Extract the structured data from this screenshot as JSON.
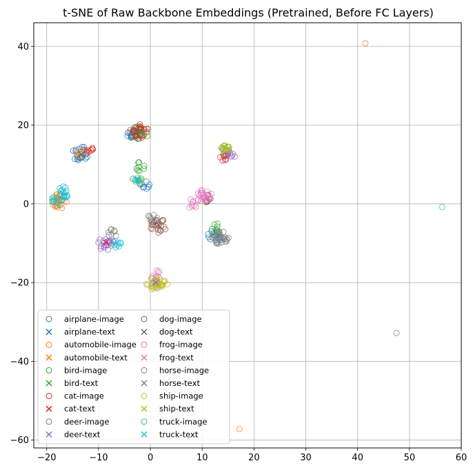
{
  "chart_data": {
    "type": "scatter",
    "title": "t-SNE of Raw Backbone Embeddings (Pretrained, Before FC Layers)",
    "xlabel": "",
    "ylabel": "",
    "xlim": [
      -22.5,
      60
    ],
    "ylim": [
      -62,
      46
    ],
    "xticks": [
      -20,
      -10,
      0,
      10,
      20,
      30,
      40,
      50,
      60
    ],
    "yticks": [
      -60,
      -40,
      -20,
      0,
      20,
      40
    ],
    "grid": true,
    "legend_position": "lower-left",
    "legend_columns": 2,
    "series": [
      {
        "name": "airplane-image",
        "marker": "circle",
        "color": "#1f77b4",
        "centers": [
          [
            -13.5,
            12.8
          ],
          [
            -3.5,
            17.5
          ],
          [
            13.5,
            -9.0
          ],
          [
            -1.0,
            4.8
          ],
          [
            12,
            -8
          ]
        ]
      },
      {
        "name": "airplane-text",
        "marker": "x",
        "color": "#1f77b4",
        "points": [
          [
            -13.3,
            12.6
          ]
        ]
      },
      {
        "name": "automobile-image",
        "marker": "circle",
        "color": "#ff7f0e",
        "centers": [
          [
            -17.5,
            0.8
          ],
          [
            -13.5,
            13.0
          ]
        ],
        "outliers": [
          [
            41.5,
            40.8
          ],
          [
            17.2,
            -57.2
          ]
        ]
      },
      {
        "name": "automobile-text",
        "marker": "x",
        "color": "#ff7f0e",
        "points": [
          [
            -17.5,
            0.8
          ]
        ]
      },
      {
        "name": "bird-image",
        "marker": "circle",
        "color": "#2ca02c",
        "centers": [
          [
            -2.0,
            18.0
          ],
          [
            14.5,
            13.5
          ],
          [
            -2.0,
            9.5
          ],
          [
            12.8,
            -6.2
          ]
        ]
      },
      {
        "name": "bird-text",
        "marker": "x",
        "color": "#2ca02c",
        "points": [
          [
            -1.8,
            18.2
          ]
        ]
      },
      {
        "name": "cat-image",
        "marker": "circle",
        "color": "#d62728",
        "centers": [
          [
            -2.0,
            18.5
          ],
          [
            14.2,
            12.0
          ],
          [
            -12.0,
            14.0
          ]
        ]
      },
      {
        "name": "cat-text",
        "marker": "x",
        "color": "#d62728",
        "points": [
          [
            -8.5,
            -9.8
          ]
        ]
      },
      {
        "name": "deer-image",
        "marker": "circle",
        "color": "#9467bd",
        "centers": [
          [
            -8.5,
            -10.0
          ],
          [
            1.0,
            -20.5
          ],
          [
            15.5,
            12.5
          ]
        ]
      },
      {
        "name": "deer-text",
        "marker": "x",
        "color": "#9467bd",
        "points": [
          [
            1.0,
            -20.0
          ]
        ]
      },
      {
        "name": "dog-image",
        "marker": "circle",
        "color": "#8c564b",
        "centers": [
          [
            1.5,
            -5.5
          ],
          [
            11.0,
            1.5
          ],
          [
            -3.0,
            18.5
          ]
        ]
      },
      {
        "name": "dog-text",
        "marker": "x",
        "color": "#8c564b",
        "points": [
          [
            1.5,
            -5.3
          ]
        ]
      },
      {
        "name": "frog-image",
        "marker": "circle",
        "color": "#e377c2",
        "centers": [
          [
            10.5,
            1.8
          ],
          [
            1.0,
            -18.0
          ],
          [
            8.0,
            0.0
          ]
        ]
      },
      {
        "name": "frog-text",
        "marker": "x",
        "color": "#e377c2",
        "points": [
          [
            10.5,
            1.6
          ]
        ]
      },
      {
        "name": "horse-image",
        "marker": "circle",
        "color": "#7f7f7f",
        "centers": [
          [
            13.5,
            -8.5
          ],
          [
            0.5,
            -3.5
          ],
          [
            -7.5,
            -7.5
          ]
        ],
        "outliers": [
          [
            47.5,
            -32.8
          ]
        ]
      },
      {
        "name": "horse-text",
        "marker": "x",
        "color": "#7f7f7f",
        "points": [
          [
            13.2,
            -8.6
          ]
        ]
      },
      {
        "name": "ship-image",
        "marker": "circle",
        "color": "#bcbd22",
        "centers": [
          [
            0.8,
            -20.0
          ],
          [
            -2.5,
            6.5
          ],
          [
            14.5,
            13.8
          ],
          [
            2.8,
            -20.5
          ]
        ]
      },
      {
        "name": "ship-text",
        "marker": "x",
        "color": "#bcbd22",
        "points": [
          [
            14.5,
            13.6
          ]
        ]
      },
      {
        "name": "truck-image",
        "marker": "circle",
        "color": "#17becf",
        "centers": [
          [
            -17.5,
            1.5
          ],
          [
            -2.5,
            6.0
          ],
          [
            -6.5,
            -10.5
          ],
          [
            -16.8,
            3.5
          ]
        ],
        "outliers": [
          [
            56.3,
            -0.8
          ]
        ]
      },
      {
        "name": "truck-text",
        "marker": "x",
        "color": "#17becf",
        "points": [
          [
            -2.5,
            6.0
          ]
        ]
      }
    ]
  }
}
